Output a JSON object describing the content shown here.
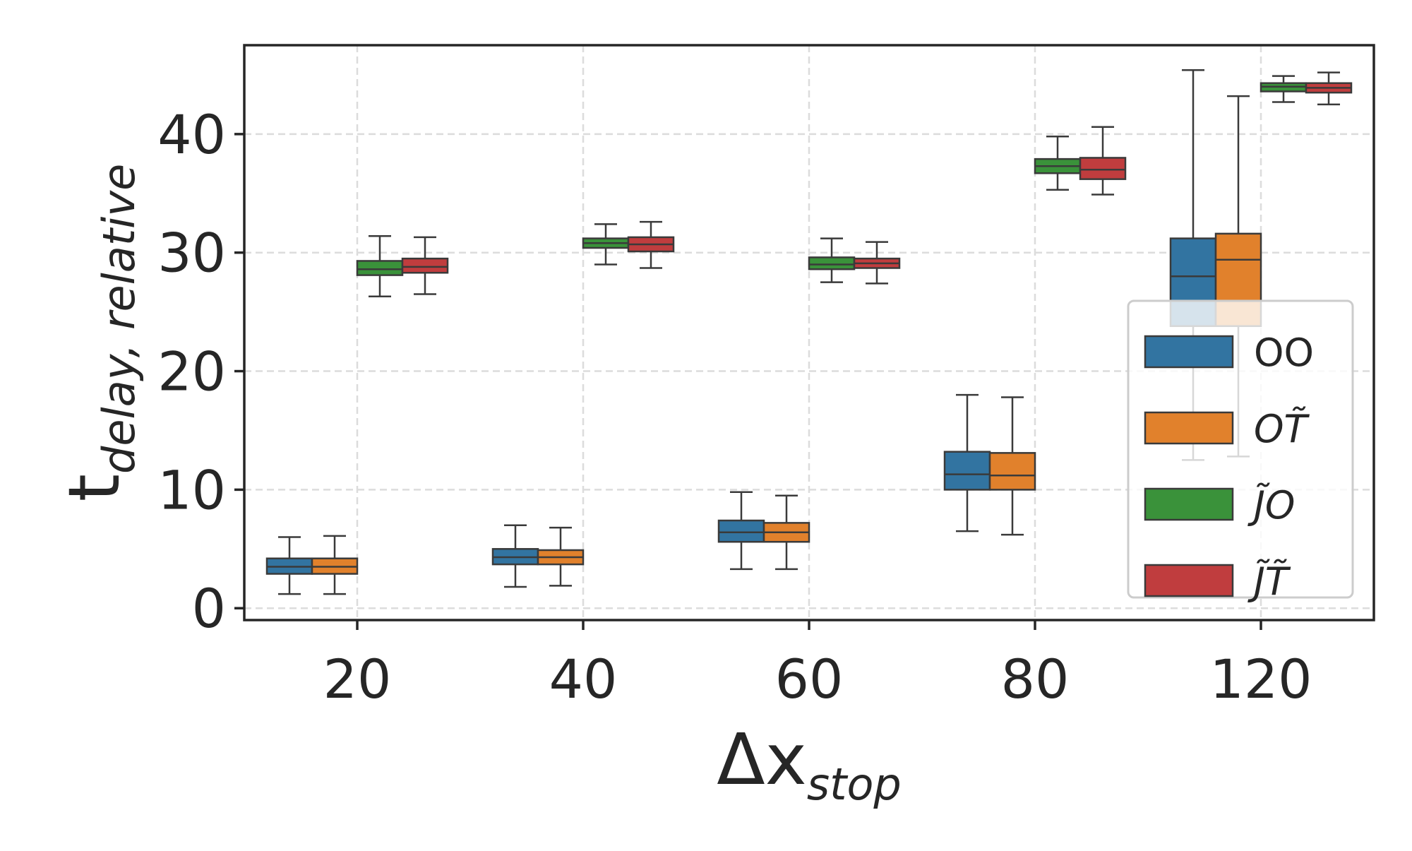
{
  "chart_data": {
    "type": "box",
    "xlabel": {
      "main": "Δx",
      "sub": "stop"
    },
    "ylabel": {
      "main": "t",
      "sub": "delay, relative"
    },
    "categories": [
      "20",
      "40",
      "60",
      "80",
      "120"
    ],
    "ylim": [
      -1,
      47.5
    ],
    "yticks": [
      0,
      10,
      20,
      30,
      40
    ],
    "grid": true,
    "legend_position": "right",
    "series": [
      {
        "name": "OO",
        "color": "#3274a1",
        "boxes": [
          {
            "whislo": 1.2,
            "q1": 2.9,
            "med": 3.5,
            "q3": 4.2,
            "whishi": 6.0
          },
          {
            "whislo": 1.8,
            "q1": 3.7,
            "med": 4.3,
            "q3": 5.0,
            "whishi": 7.0
          },
          {
            "whislo": 3.3,
            "q1": 5.6,
            "med": 6.4,
            "q3": 7.4,
            "whishi": 9.8
          },
          {
            "whislo": 6.5,
            "q1": 10.0,
            "med": 11.3,
            "q3": 13.2,
            "whishi": 18.0
          },
          {
            "whislo": 12.5,
            "q1": 23.8,
            "med": 28.0,
            "q3": 31.2,
            "whishi": 45.4
          }
        ]
      },
      {
        "name": "OT̃",
        "color": "#e1812c",
        "boxes": [
          {
            "whislo": 1.2,
            "q1": 2.9,
            "med": 3.5,
            "q3": 4.2,
            "whishi": 6.1
          },
          {
            "whislo": 1.9,
            "q1": 3.7,
            "med": 4.3,
            "q3": 4.9,
            "whishi": 6.8
          },
          {
            "whislo": 3.3,
            "q1": 5.6,
            "med": 6.4,
            "q3": 7.2,
            "whishi": 9.5
          },
          {
            "whislo": 6.2,
            "q1": 10.0,
            "med": 11.2,
            "q3": 13.1,
            "whishi": 17.8
          },
          {
            "whislo": 12.8,
            "q1": 23.8,
            "med": 29.4,
            "q3": 31.6,
            "whishi": 43.2
          }
        ]
      },
      {
        "name": "J̃O",
        "color": "#3a923a",
        "boxes": [
          {
            "whislo": 26.3,
            "q1": 28.1,
            "med": 28.6,
            "q3": 29.3,
            "whishi": 31.4
          },
          {
            "whislo": 29.0,
            "q1": 30.4,
            "med": 30.8,
            "q3": 31.2,
            "whishi": 32.4
          },
          {
            "whislo": 27.5,
            "q1": 28.6,
            "med": 29.0,
            "q3": 29.6,
            "whishi": 31.2
          },
          {
            "whislo": 35.3,
            "q1": 36.7,
            "med": 37.3,
            "q3": 37.9,
            "whishi": 39.8
          },
          {
            "whislo": 42.7,
            "q1": 43.6,
            "med": 44.0,
            "q3": 44.3,
            "whishi": 44.9
          }
        ]
      },
      {
        "name": "J̃T̃",
        "color": "#c03d3e",
        "boxes": [
          {
            "whislo": 26.5,
            "q1": 28.3,
            "med": 28.8,
            "q3": 29.5,
            "whishi": 31.3
          },
          {
            "whislo": 28.7,
            "q1": 30.1,
            "med": 30.7,
            "q3": 31.3,
            "whishi": 32.6
          },
          {
            "whislo": 27.4,
            "q1": 28.7,
            "med": 29.1,
            "q3": 29.5,
            "whishi": 30.9
          },
          {
            "whislo": 34.9,
            "q1": 36.2,
            "med": 37.0,
            "q3": 38.0,
            "whishi": 40.6
          },
          {
            "whislo": 42.5,
            "q1": 43.5,
            "med": 43.9,
            "q3": 44.3,
            "whishi": 45.2
          }
        ]
      }
    ]
  }
}
